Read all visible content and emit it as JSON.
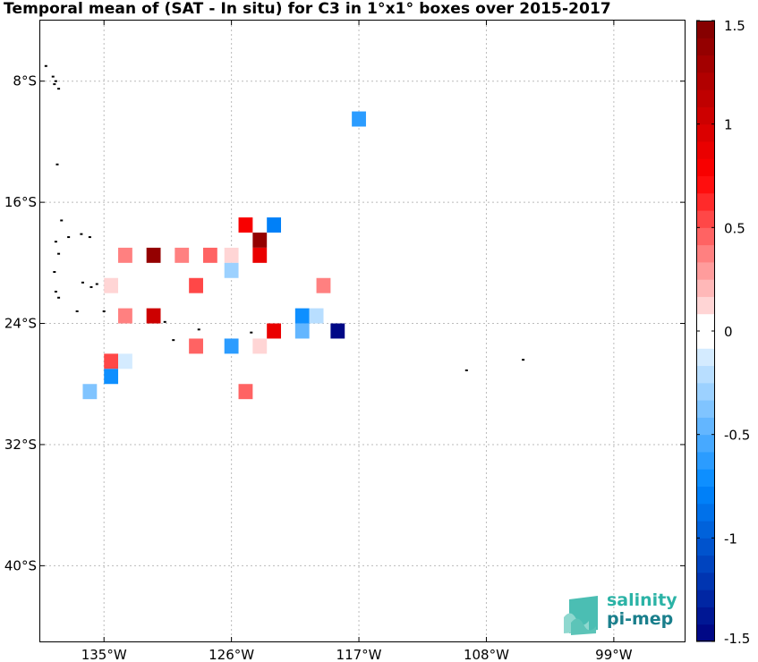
{
  "title": "Temporal mean of (SAT - In situ) for C3 in 1°x1° boxes over 2015-2017",
  "map": {
    "lon_range": [
      -139.5,
      -94
    ],
    "lat_range": [
      -45,
      -4
    ],
    "lon_ticks": [
      {
        "value": -135,
        "label": "135°W"
      },
      {
        "value": -126,
        "label": "126°W"
      },
      {
        "value": -117,
        "label": "117°W"
      },
      {
        "value": -108,
        "label": "108°W"
      },
      {
        "value": -99,
        "label": "99°W"
      }
    ],
    "lat_ticks": [
      {
        "value": -8,
        "label": "8°S"
      },
      {
        "value": -16,
        "label": "16°S"
      },
      {
        "value": -24,
        "label": "24°S"
      },
      {
        "value": -32,
        "label": "32°S"
      },
      {
        "value": -40,
        "label": "40°S"
      }
    ],
    "grid": true,
    "boxes": [
      {
        "lon": -117,
        "lat": -10.5,
        "value": -0.6
      },
      {
        "lon": -125,
        "lat": -17.5,
        "value": 0.75
      },
      {
        "lon": -123,
        "lat": -17.5,
        "value": -0.8
      },
      {
        "lon": -124,
        "lat": -18.5,
        "value": 1.4
      },
      {
        "lon": -133.5,
        "lat": -19.5,
        "value": 0.35
      },
      {
        "lon": -131.5,
        "lat": -19.5,
        "value": 1.4
      },
      {
        "lon": -129.5,
        "lat": -19.5,
        "value": 0.35
      },
      {
        "lon": -127.5,
        "lat": -19.5,
        "value": 0.45
      },
      {
        "lon": -126,
        "lat": -19.5,
        "value": 0.12
      },
      {
        "lon": -124,
        "lat": -19.5,
        "value": 0.85
      },
      {
        "lon": -126,
        "lat": -20.5,
        "value": -0.3
      },
      {
        "lon": -134.5,
        "lat": -21.5,
        "value": 0.15
      },
      {
        "lon": -128.5,
        "lat": -21.5,
        "value": 0.55
      },
      {
        "lon": -119.5,
        "lat": -21.5,
        "value": 0.35
      },
      {
        "lon": -133.5,
        "lat": -23.5,
        "value": 0.35
      },
      {
        "lon": -131.5,
        "lat": -23.5,
        "value": 1.0
      },
      {
        "lon": -121,
        "lat": -23.5,
        "value": -0.7
      },
      {
        "lon": -120,
        "lat": -23.5,
        "value": -0.25
      },
      {
        "lon": -123,
        "lat": -24.5,
        "value": 0.85
      },
      {
        "lon": -121,
        "lat": -24.5,
        "value": -0.45
      },
      {
        "lon": -118.5,
        "lat": -24.5,
        "value": -1.5
      },
      {
        "lon": -128.5,
        "lat": -25.5,
        "value": 0.45
      },
      {
        "lon": -126,
        "lat": -25.5,
        "value": -0.6
      },
      {
        "lon": -124,
        "lat": -25.5,
        "value": 0.15
      },
      {
        "lon": -134.5,
        "lat": -26.5,
        "value": 0.5
      },
      {
        "lon": -133.5,
        "lat": -26.5,
        "value": -0.15
      },
      {
        "lon": -134.5,
        "lat": -27.5,
        "value": -0.7
      },
      {
        "lon": -136,
        "lat": -28.5,
        "value": -0.4
      },
      {
        "lon": -125,
        "lat": -28.5,
        "value": 0.45
      }
    ],
    "islands": [
      {
        "lon": -139.1,
        "lat": -7.0
      },
      {
        "lon": -138.6,
        "lat": -7.7
      },
      {
        "lon": -138.5,
        "lat": -8.2
      },
      {
        "lon": -138.2,
        "lat": -8.5
      },
      {
        "lon": -138.4,
        "lat": -8.0
      },
      {
        "lon": -138.3,
        "lat": -13.5
      },
      {
        "lon": -138.0,
        "lat": -17.2
      },
      {
        "lon": -137.5,
        "lat": -18.3
      },
      {
        "lon": -136.6,
        "lat": -18.1
      },
      {
        "lon": -136.0,
        "lat": -18.3
      },
      {
        "lon": -138.4,
        "lat": -18.6
      },
      {
        "lon": -138.2,
        "lat": -19.4
      },
      {
        "lon": -138.5,
        "lat": -20.6
      },
      {
        "lon": -136.5,
        "lat": -21.3
      },
      {
        "lon": -135.9,
        "lat": -21.6
      },
      {
        "lon": -135.5,
        "lat": -21.4
      },
      {
        "lon": -138.4,
        "lat": -21.9
      },
      {
        "lon": -138.2,
        "lat": -22.3
      },
      {
        "lon": -135.0,
        "lat": -23.2
      },
      {
        "lon": -136.9,
        "lat": -23.2
      },
      {
        "lon": -130.7,
        "lat": -23.9
      },
      {
        "lon": -128.3,
        "lat": -24.4
      },
      {
        "lon": -130.1,
        "lat": -25.1
      },
      {
        "lon": -124.6,
        "lat": -24.6
      },
      {
        "lon": -109.4,
        "lat": -27.1
      },
      {
        "lon": -105.4,
        "lat": -26.4
      }
    ]
  },
  "colorbar": {
    "vmin": -1.5,
    "vmax": 1.5,
    "levels": 36,
    "colors": {
      "low": "#00007f",
      "mid": "#ffffff",
      "high": "#7f0000"
    },
    "ticks": [
      {
        "value": 1.5,
        "label": "1.5"
      },
      {
        "value": 1,
        "label": "1"
      },
      {
        "value": 0.5,
        "label": "0.5"
      },
      {
        "value": 0,
        "label": "0"
      },
      {
        "value": -0.5,
        "label": "-0.5"
      },
      {
        "value": -1,
        "label": "-1"
      },
      {
        "value": -1.5,
        "label": "-1.5"
      }
    ]
  },
  "logo": {
    "line1": "salinity",
    "line2": "pi-mep"
  }
}
